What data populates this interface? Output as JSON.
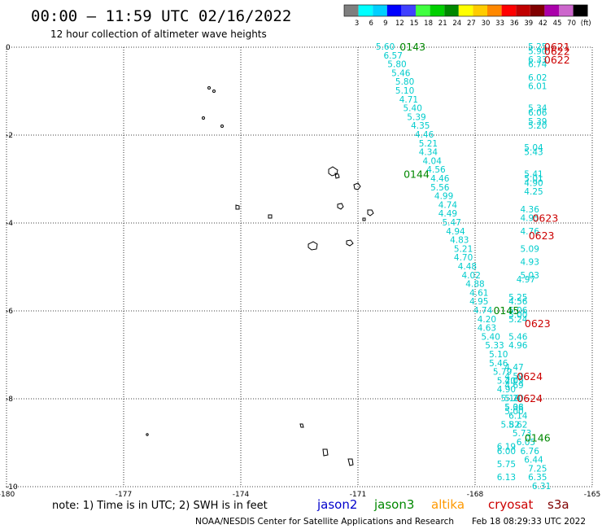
{
  "header": {
    "title": "00:00 – 11:59 UTC 02/16/2022",
    "subtitle": "12 hour collection of altimeter wave heights"
  },
  "legend_scale": {
    "colors": [
      "#7f7f7f",
      "#00ffff",
      "#00cfff",
      "#0000ff",
      "#4040ff",
      "#40ff40",
      "#00d000",
      "#008800",
      "#ffff00",
      "#ffcc00",
      "#ff8800",
      "#ff0000",
      "#c00000",
      "#800000",
      "#aa00aa",
      "#cc66cc",
      "#000000"
    ],
    "labels": [
      "3",
      "6",
      "9",
      "12",
      "15",
      "18",
      "21",
      "24",
      "27",
      "30",
      "33",
      "36",
      "39",
      "42",
      "45",
      "70",
      "(ft)"
    ]
  },
  "footer": {
    "note": "note: 1) Time is in UTC; 2) SWH is in feet",
    "credit": "NOAA/NESDIS Center for Satellite Applications and Research",
    "generated": "Feb 18 08:29:33 UTC 2022"
  },
  "satellites": [
    {
      "name": "jason2",
      "color": "#0000cc"
    },
    {
      "name": "jason3",
      "color": "#008800"
    },
    {
      "name": "altika",
      "color": "#ff9900"
    },
    {
      "name": "cryosat",
      "color": "#cc0000"
    },
    {
      "name": "s3a",
      "color": "#800000"
    }
  ],
  "chart_data": {
    "type": "scatter",
    "xlim": [
      -180,
      -165
    ],
    "ylim": [
      -10,
      0
    ],
    "xticks": [
      -180,
      -177,
      -174,
      -171,
      -168,
      -165
    ],
    "yticks": [
      0,
      -2,
      -4,
      -6,
      -8,
      -10
    ],
    "grid": true,
    "series": [
      {
        "name": "jason3",
        "color": "#00cccc",
        "points": [
          {
            "x": -170.3,
            "y": 0.0,
            "v": "5.60"
          },
          {
            "x": -170.1,
            "y": -0.2,
            "v": "6.57"
          },
          {
            "x": -170.0,
            "y": -0.4,
            "v": "5.80"
          },
          {
            "x": -169.9,
            "y": -0.6,
            "v": "5.46"
          },
          {
            "x": -169.8,
            "y": -0.8,
            "v": "5.80"
          },
          {
            "x": -169.8,
            "y": -1.0,
            "v": "5.10"
          },
          {
            "x": -169.7,
            "y": -1.2,
            "v": "4.71"
          },
          {
            "x": -169.6,
            "y": -1.4,
            "v": "5.40"
          },
          {
            "x": -169.5,
            "y": -1.6,
            "v": "5.39"
          },
          {
            "x": -169.4,
            "y": -1.8,
            "v": "4.35"
          },
          {
            "x": -169.3,
            "y": -2.0,
            "v": "4.46"
          },
          {
            "x": -169.2,
            "y": -2.2,
            "v": "5.21"
          },
          {
            "x": -169.2,
            "y": -2.4,
            "v": "4.34"
          },
          {
            "x": -169.1,
            "y": -2.6,
            "v": "4.04"
          },
          {
            "x": -169.0,
            "y": -2.8,
            "v": "4.56"
          },
          {
            "x": -168.9,
            "y": -3.0,
            "v": "4.46"
          },
          {
            "x": -168.9,
            "y": -3.2,
            "v": "5.56"
          },
          {
            "x": -168.8,
            "y": -3.4,
            "v": "4.99"
          },
          {
            "x": -168.7,
            "y": -3.6,
            "v": "4.74"
          },
          {
            "x": -168.7,
            "y": -3.8,
            "v": "4.49"
          },
          {
            "x": -168.6,
            "y": -4.0,
            "v": "5.47"
          },
          {
            "x": -168.5,
            "y": -4.2,
            "v": "4.94"
          },
          {
            "x": -168.4,
            "y": -4.4,
            "v": "4.83"
          },
          {
            "x": -168.3,
            "y": -4.6,
            "v": "5.21"
          },
          {
            "x": -168.3,
            "y": -4.8,
            "v": "4.70"
          },
          {
            "x": -168.2,
            "y": -5.0,
            "v": "4.48"
          },
          {
            "x": -168.1,
            "y": -5.2,
            "v": "4.02"
          },
          {
            "x": -168.0,
            "y": -5.4,
            "v": "4.88"
          },
          {
            "x": -167.9,
            "y": -5.6,
            "v": "4.61"
          },
          {
            "x": -167.9,
            "y": -5.8,
            "v": "4.95"
          },
          {
            "x": -167.8,
            "y": -6.0,
            "v": "4.74"
          },
          {
            "x": -167.7,
            "y": -6.2,
            "v": "4.20"
          },
          {
            "x": -167.7,
            "y": -6.4,
            "v": "4.63"
          },
          {
            "x": -167.6,
            "y": -6.6,
            "v": "5.40"
          },
          {
            "x": -167.5,
            "y": -6.8,
            "v": "5.33"
          },
          {
            "x": -167.4,
            "y": -7.0,
            "v": "5.10"
          },
          {
            "x": -167.4,
            "y": -7.2,
            "v": "5.46"
          },
          {
            "x": -167.3,
            "y": -7.4,
            "v": "5.79"
          },
          {
            "x": -167.2,
            "y": -7.6,
            "v": "5.20"
          },
          {
            "x": -167.2,
            "y": -7.8,
            "v": "4.90"
          },
          {
            "x": -167.1,
            "y": -8.0,
            "v": "5.16"
          },
          {
            "x": -167.0,
            "y": -8.2,
            "v": "5.38"
          },
          {
            "x": -166.9,
            "y": -8.4,
            "v": "6.14"
          },
          {
            "x": -166.9,
            "y": -8.6,
            "v": "5.62"
          },
          {
            "x": -166.8,
            "y": -8.8,
            "v": "5.73"
          },
          {
            "x": -166.7,
            "y": -9.0,
            "v": "6.05"
          },
          {
            "x": -166.6,
            "y": -9.2,
            "v": "6.76"
          },
          {
            "x": -166.5,
            "y": -9.4,
            "v": "6.44"
          },
          {
            "x": -166.4,
            "y": -9.6,
            "v": "7.25"
          },
          {
            "x": -166.4,
            "y": -9.8,
            "v": "6.35"
          },
          {
            "x": -166.3,
            "y": -10.0,
            "v": "6.31"
          }
        ]
      },
      {
        "name": "cryosat",
        "color": "#00cccc",
        "points": [
          {
            "x": -166.4,
            "y": 0.0,
            "v": "5.25"
          },
          {
            "x": -166.4,
            "y": -0.1,
            "v": "5.90"
          },
          {
            "x": -166.4,
            "y": -0.3,
            "v": "6.33"
          },
          {
            "x": -166.4,
            "y": -0.4,
            "v": "6.74"
          },
          {
            "x": -166.4,
            "y": -0.7,
            "v": "6.02"
          },
          {
            "x": -166.4,
            "y": -0.9,
            "v": "6.01"
          },
          {
            "x": -166.4,
            "y": -1.4,
            "v": "5.34"
          },
          {
            "x": -166.4,
            "y": -1.5,
            "v": "6.06"
          },
          {
            "x": -166.4,
            "y": -1.7,
            "v": "5.39"
          },
          {
            "x": -166.4,
            "y": -1.8,
            "v": "5.20"
          },
          {
            "x": -166.5,
            "y": -2.3,
            "v": "5.04"
          },
          {
            "x": -166.5,
            "y": -2.4,
            "v": "5.43"
          },
          {
            "x": -166.5,
            "y": -2.9,
            "v": "5.41"
          },
          {
            "x": -166.5,
            "y": -3.0,
            "v": "5.01"
          },
          {
            "x": -166.5,
            "y": -3.1,
            "v": "4.90"
          },
          {
            "x": -166.5,
            "y": -3.3,
            "v": "4.25"
          },
          {
            "x": -166.6,
            "y": -3.7,
            "v": "4.36"
          },
          {
            "x": -166.6,
            "y": -3.9,
            "v": "4.95"
          },
          {
            "x": -166.6,
            "y": -4.2,
            "v": "4.76"
          },
          {
            "x": -166.6,
            "y": -4.6,
            "v": "5.09"
          },
          {
            "x": -166.6,
            "y": -4.9,
            "v": "4.93"
          },
          {
            "x": -166.6,
            "y": -5.2,
            "v": "5.03"
          },
          {
            "x": -166.7,
            "y": -5.3,
            "v": "4.97"
          },
          {
            "x": -166.9,
            "y": -5.7,
            "v": "5.25"
          },
          {
            "x": -166.9,
            "y": -5.8,
            "v": "4.56"
          },
          {
            "x": -166.9,
            "y": -6.0,
            "v": "5.06"
          },
          {
            "x": -166.9,
            "y": -6.1,
            "v": "5.00"
          },
          {
            "x": -166.9,
            "y": -6.2,
            "v": "5.24"
          },
          {
            "x": -166.9,
            "y": -6.6,
            "v": "5.46"
          },
          {
            "x": -166.9,
            "y": -6.8,
            "v": "4.96"
          },
          {
            "x": -167.0,
            "y": -7.3,
            "v": "4.47"
          },
          {
            "x": -167.0,
            "y": -7.5,
            "v": "4.59"
          },
          {
            "x": -167.0,
            "y": -7.6,
            "v": "4.09"
          },
          {
            "x": -167.0,
            "y": -7.7,
            "v": "4.69"
          },
          {
            "x": -167.0,
            "y": -8.0,
            "v": "5.20"
          },
          {
            "x": -167.0,
            "y": -8.2,
            "v": "5.06"
          },
          {
            "x": -167.0,
            "y": -8.3,
            "v": "5.00"
          },
          {
            "x": -167.1,
            "y": -8.6,
            "v": "5.82"
          },
          {
            "x": -167.2,
            "y": -9.1,
            "v": "6.19"
          },
          {
            "x": -167.2,
            "y": -9.2,
            "v": "6.00"
          },
          {
            "x": -167.2,
            "y": -9.5,
            "v": "5.75"
          },
          {
            "x": -167.2,
            "y": -9.8,
            "v": "6.13"
          }
        ]
      }
    ],
    "time_labels": [
      {
        "x": -169.6,
        "y": 0.0,
        "t": "0143",
        "color": "#008800"
      },
      {
        "x": -169.5,
        "y": -2.9,
        "t": "0144",
        "color": "#008800"
      },
      {
        "x": -167.2,
        "y": -6.0,
        "t": "0145",
        "color": "#008800"
      },
      {
        "x": -166.4,
        "y": -8.9,
        "t": "0146",
        "color": "#008800"
      },
      {
        "x": -165.9,
        "y": 0.0,
        "t": "0621",
        "color": "#cc0000"
      },
      {
        "x": -165.9,
        "y": -0.1,
        "t": "0622",
        "color": "#cc0000"
      },
      {
        "x": -165.9,
        "y": -0.3,
        "t": "0622",
        "color": "#cc0000"
      },
      {
        "x": -166.2,
        "y": -3.9,
        "t": "0623",
        "color": "#cc0000"
      },
      {
        "x": -166.3,
        "y": -4.3,
        "t": "0623",
        "color": "#cc0000"
      },
      {
        "x": -166.4,
        "y": -6.3,
        "t": "0623",
        "color": "#cc0000"
      },
      {
        "x": -166.6,
        "y": -7.5,
        "t": "0624",
        "color": "#cc0000"
      },
      {
        "x": -166.6,
        "y": -8.0,
        "t": "0624",
        "color": "#cc0000"
      }
    ]
  }
}
